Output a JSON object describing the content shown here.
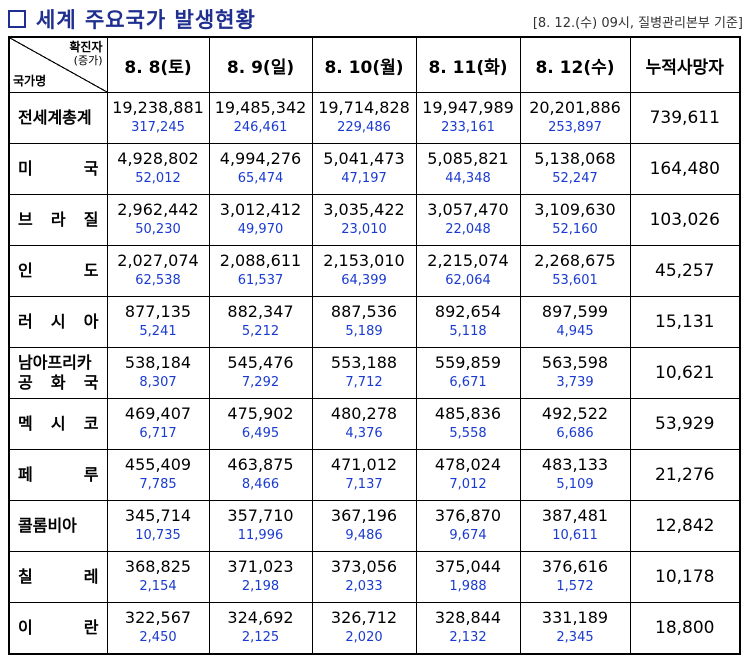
{
  "title": "세계 주요국가 발생현황",
  "source": "[8. 12.(수) 09시, 질병관리본부 기준]",
  "header": {
    "corner_top": "확진자",
    "corner_top_sub": "(증가)",
    "corner_bottom": "국가명",
    "dates": [
      "8. 8(토)",
      "8. 9(일)",
      "8. 10(월)",
      "8. 11(화)",
      "8. 12(수)"
    ],
    "deaths_label": "누적사망자"
  },
  "rows": [
    {
      "country": "전세계총계",
      "totals": [
        "19,238,881",
        "19,485,342",
        "19,714,828",
        "19,947,989",
        "20,201,886"
      ],
      "increases": [
        "317,245",
        "246,461",
        "229,486",
        "233,161",
        "253,897"
      ],
      "deaths": "739,611"
    },
    {
      "country": "미국",
      "totals": [
        "4,928,802",
        "4,994,276",
        "5,041,473",
        "5,085,821",
        "5,138,068"
      ],
      "increases": [
        "52,012",
        "65,474",
        "47,197",
        "44,348",
        "52,247"
      ],
      "deaths": "164,480"
    },
    {
      "country": "브라질",
      "totals": [
        "2,962,442",
        "3,012,412",
        "3,035,422",
        "3,057,470",
        "3,109,630"
      ],
      "increases": [
        "50,230",
        "49,970",
        "23,010",
        "22,048",
        "52,160"
      ],
      "deaths": "103,026"
    },
    {
      "country": "인도",
      "totals": [
        "2,027,074",
        "2,088,611",
        "2,153,010",
        "2,215,074",
        "2,268,675"
      ],
      "increases": [
        "62,538",
        "61,537",
        "64,399",
        "62,064",
        "53,601"
      ],
      "deaths": "45,257"
    },
    {
      "country": "러시아",
      "totals": [
        "877,135",
        "882,347",
        "887,536",
        "892,654",
        "897,599"
      ],
      "increases": [
        "5,241",
        "5,212",
        "5,189",
        "5,118",
        "4,945"
      ],
      "deaths": "15,131"
    },
    {
      "country": "남아프리카공화국",
      "country_line1": "남아프리카",
      "country_line2": "공화국",
      "totals": [
        "538,184",
        "545,476",
        "553,188",
        "559,859",
        "563,598"
      ],
      "increases": [
        "8,307",
        "7,292",
        "7,712",
        "6,671",
        "3,739"
      ],
      "deaths": "10,621"
    },
    {
      "country": "멕시코",
      "totals": [
        "469,407",
        "475,902",
        "480,278",
        "485,836",
        "492,522"
      ],
      "increases": [
        "6,717",
        "6,495",
        "4,376",
        "5,558",
        "6,686"
      ],
      "deaths": "53,929"
    },
    {
      "country": "페루",
      "totals": [
        "455,409",
        "463,875",
        "471,012",
        "478,024",
        "483,133"
      ],
      "increases": [
        "7,785",
        "8,466",
        "7,137",
        "7,012",
        "5,109"
      ],
      "deaths": "21,276"
    },
    {
      "country": "콜롬비아",
      "totals": [
        "345,714",
        "357,710",
        "367,196",
        "376,870",
        "387,481"
      ],
      "increases": [
        "10,735",
        "11,996",
        "9,486",
        "9,674",
        "10,611"
      ],
      "deaths": "12,842"
    },
    {
      "country": "칠레",
      "totals": [
        "368,825",
        "371,023",
        "373,056",
        "375,044",
        "376,616"
      ],
      "increases": [
        "2,154",
        "2,198",
        "2,033",
        "1,988",
        "1,572"
      ],
      "deaths": "10,178"
    },
    {
      "country": "이란",
      "totals": [
        "322,567",
        "324,692",
        "326,712",
        "328,844",
        "331,189"
      ],
      "increases": [
        "2,450",
        "2,125",
        "2,020",
        "2,132",
        "2,345"
      ],
      "deaths": "18,800"
    }
  ]
}
